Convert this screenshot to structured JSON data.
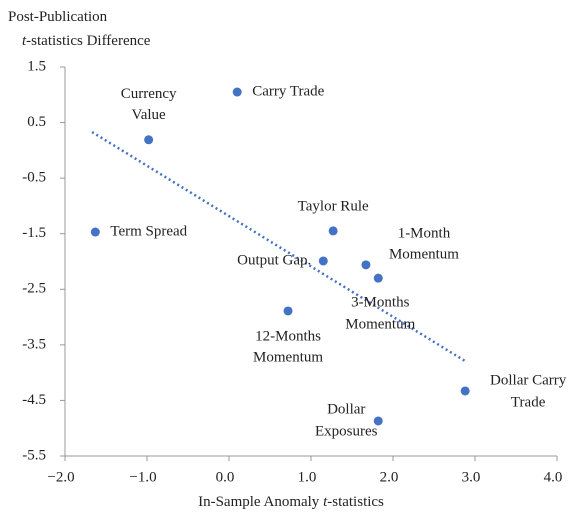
{
  "chart_data": {
    "type": "scatter",
    "y_label": [
      [
        {
          "text": "Post-Publication"
        }
      ],
      [
        {
          "text": "t",
          "italic": true
        },
        {
          "text": "-statistics Difference"
        }
      ]
    ],
    "x_label": [
      {
        "text": "In-Sample Anomaly "
      },
      {
        "text": "t",
        "italic": true
      },
      {
        "text": "-statistics"
      }
    ],
    "series": [
      {
        "color": "#4472c4",
        "x": [
          0.1,
          -0.98,
          -1.63,
          1.27,
          1.15,
          1.67,
          1.82,
          0.72,
          2.88,
          1.82
        ],
        "values": [
          1.05,
          0.19,
          -1.47,
          -1.45,
          -1.99,
          -2.06,
          -2.3,
          -2.89,
          -4.33,
          -4.87
        ],
        "labels": [
          [
            "Carry Trade"
          ],
          [
            "Currency",
            "Value"
          ],
          [
            "Term Spread"
          ],
          [
            "Taylor Rule"
          ],
          [
            "Output Gap."
          ],
          [
            "1-Month",
            "Momentum"
          ],
          [
            "3-Months",
            "Momentum"
          ],
          [
            "12-Months",
            "Momentum"
          ],
          [
            "Dollar Carry",
            "Trade"
          ],
          [
            "Dollar",
            "Exposures"
          ]
        ]
      }
    ],
    "trendline": {
      "color": "#4472c4",
      "x": [
        -1.67,
        2.9
      ],
      "values": [
        0.33,
        -3.81
      ]
    },
    "xlim": [
      -2.0,
      4.0
    ],
    "xticks": [
      {
        "value": -2.0,
        "label": "−2.0"
      },
      {
        "value": -1.0,
        "label": "−1.0"
      },
      {
        "value": 0.0,
        "label": "0.0"
      },
      {
        "value": 1.0,
        "label": "1.0"
      },
      {
        "value": 2.0,
        "label": "2.0"
      },
      {
        "value": 3.0,
        "label": "3.0"
      },
      {
        "value": 4.0,
        "label": "4.0"
      }
    ],
    "ylim": [
      -5.5,
      1.5
    ],
    "yticks": [
      1.5,
      0.5,
      -0.5,
      -1.5,
      -2.5,
      -3.5,
      -4.5,
      -5.5
    ],
    "grid": false
  }
}
